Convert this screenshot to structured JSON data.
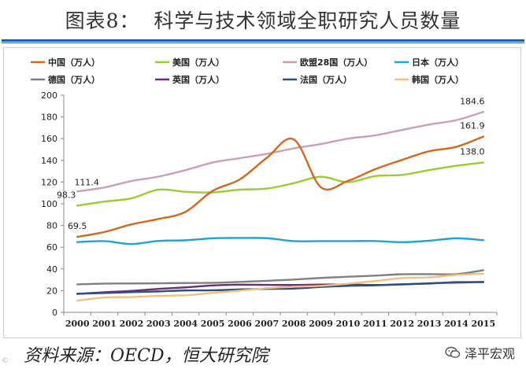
{
  "header": {
    "title": "图表8：  科学与技术领域全职研究人员数量"
  },
  "footer": {
    "source": "资料来源：OECD，恒大研究院",
    "watermark": "泽平宏观",
    "corner_mark": "©"
  },
  "chart_data": {
    "type": "line",
    "title": "图表8：  科学与技术领域全职研究人员数量",
    "xlabel": "",
    "ylabel": "",
    "x": [
      "2000",
      "2001",
      "2002",
      "2003",
      "2004",
      "2005",
      "2006",
      "2007",
      "2008",
      "2009",
      "2010",
      "2011",
      "2012",
      "2013",
      "2014",
      "2015"
    ],
    "ylim": [
      0,
      200
    ],
    "yticks": [
      "0",
      "20",
      "40",
      "60",
      "80",
      "100",
      "120",
      "140",
      "160",
      "180",
      "200"
    ],
    "grid": false,
    "legend_position": "top",
    "series": [
      {
        "name": "中国（万人）",
        "color": "#d2691e",
        "values": [
          69.5,
          74.0,
          81.0,
          86.0,
          92.6,
          111.9,
          122.4,
          142.3,
          159.3,
          115.2,
          121.1,
          131.8,
          140.4,
          148.4,
          152.4,
          161.9
        ]
      },
      {
        "name": "美国（万人）",
        "color": "#9acd32",
        "values": [
          98.3,
          102.0,
          105.0,
          113.0,
          111.0,
          110.5,
          113.0,
          114.0,
          119.0,
          124.9,
          119.9,
          125.5,
          126.6,
          131.0,
          135.0,
          138.0
        ]
      },
      {
        "name": "欧盟28国（万人）",
        "color": "#c9a0b8",
        "values": [
          111.4,
          115.0,
          121.0,
          125.0,
          131.0,
          138.0,
          142.0,
          146.0,
          151.0,
          155.0,
          160.0,
          163.0,
          168.0,
          173.0,
          177.0,
          184.6
        ]
      },
      {
        "name": "日本（万人）",
        "color": "#1ea5d4",
        "values": [
          64.7,
          65.6,
          62.9,
          65.8,
          66.4,
          68.2,
          68.5,
          68.3,
          65.6,
          65.6,
          65.6,
          65.7,
          64.6,
          66.0,
          68.2,
          66.5
        ]
      },
      {
        "name": "德国（万人）",
        "color": "#808080",
        "values": [
          25.8,
          26.5,
          26.6,
          26.8,
          27.0,
          27.2,
          28.0,
          29.0,
          30.2,
          31.7,
          32.8,
          33.8,
          35.1,
          35.2,
          35.2,
          38.8
        ]
      },
      {
        "name": "英国（万人）",
        "color": "#6b2c7a",
        "values": [
          17.0,
          18.5,
          19.8,
          21.6,
          23.0,
          24.8,
          25.5,
          25.3,
          25.2,
          25.6,
          25.6,
          25.2,
          25.7,
          26.8,
          27.4,
          28.0
        ]
      },
      {
        "name": "法国（万人）",
        "color": "#2f4f7f",
        "values": [
          17.2,
          17.8,
          18.6,
          19.3,
          20.2,
          20.3,
          21.1,
          21.6,
          21.9,
          23.4,
          24.4,
          24.9,
          25.9,
          26.5,
          27.8,
          27.8
        ]
      },
      {
        "name": "韩国（万人）",
        "color": "#f0c080",
        "values": [
          10.8,
          13.6,
          14.1,
          15.2,
          15.7,
          18.0,
          20.0,
          22.2,
          23.6,
          24.4,
          26.4,
          28.8,
          31.6,
          32.2,
          34.5,
          35.6
        ]
      }
    ],
    "annotations": [
      {
        "text": "184.6",
        "series": 2,
        "index": 15,
        "anchor": "above-left"
      },
      {
        "text": "161.9",
        "series": 0,
        "index": 15,
        "anchor": "above-left"
      },
      {
        "text": "138.0",
        "series": 1,
        "index": 15,
        "anchor": "above-left"
      },
      {
        "text": "111.4",
        "series": 2,
        "index": 0,
        "anchor": "below-right"
      },
      {
        "text": "98.3",
        "series": 1,
        "index": 0,
        "anchor": "above-left"
      },
      {
        "text": "69.5",
        "series": 0,
        "index": 0,
        "anchor": "above"
      }
    ]
  }
}
